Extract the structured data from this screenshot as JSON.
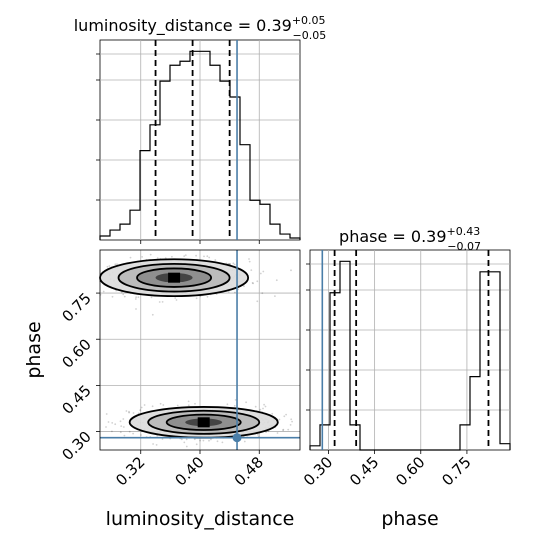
{
  "chart_data": {
    "type": "corner",
    "parameters": [
      {
        "name": "luminosity_distance",
        "median": "0.39",
        "plus": "+0.05",
        "minus": "−0.05",
        "title_prefix": "luminosity_distance = 0.39",
        "range": [
          0.265,
          0.535
        ],
        "ticks": [
          0.32,
          0.4,
          0.48
        ],
        "tick_labels": [
          "0.32",
          "0.40",
          "0.48"
        ],
        "quantiles": [
          0.34,
          0.39,
          0.44
        ],
        "truth": 0.45
      },
      {
        "name": "phase",
        "median": "0.39",
        "plus": "+0.43",
        "minus": "−0.07",
        "title_prefix": "phase = 0.39",
        "range": [
          0.24,
          0.89
        ],
        "ticks": [
          0.3,
          0.45,
          0.6,
          0.75
        ],
        "tick_labels": [
          "0.30",
          "0.45",
          "0.60",
          "0.75"
        ],
        "quantiles": [
          0.32,
          0.39,
          0.82
        ],
        "truth": 0.28
      }
    ],
    "hist_luminosity_distance": {
      "bin_edges": [
        0.265,
        0.2785,
        0.292,
        0.3055,
        0.319,
        0.3325,
        0.346,
        0.3595,
        0.373,
        0.3865,
        0.4,
        0.4135,
        0.427,
        0.4405,
        0.454,
        0.4675,
        0.481,
        0.4945,
        0.508,
        0.5215,
        0.535
      ],
      "counts": [
        2,
        5,
        8,
        15,
        45,
        58,
        80,
        88,
        90,
        95,
        95,
        88,
        80,
        72,
        48,
        20,
        18,
        8,
        3,
        1
      ]
    },
    "hist_phase": {
      "bin_edges": [
        0.24,
        0.2725,
        0.305,
        0.3375,
        0.37,
        0.4025,
        0.435,
        0.4675,
        0.5,
        0.5325,
        0.565,
        0.5975,
        0.63,
        0.6625,
        0.695,
        0.7275,
        0.76,
        0.7925,
        0.825,
        0.8575,
        0.89
      ],
      "counts": [
        2,
        12,
        75,
        90,
        12,
        0,
        0,
        0,
        0,
        0,
        0,
        0,
        0,
        0,
        0,
        12,
        35,
        85,
        85,
        3
      ]
    },
    "clusters": [
      {
        "x": 0.365,
        "y": 0.8,
        "sx": 0.05,
        "sy": 0.03,
        "n": 650
      },
      {
        "x": 0.405,
        "y": 0.33,
        "sx": 0.05,
        "sy": 0.025,
        "n": 650
      }
    ],
    "truth_color": "#4a7ea8"
  }
}
